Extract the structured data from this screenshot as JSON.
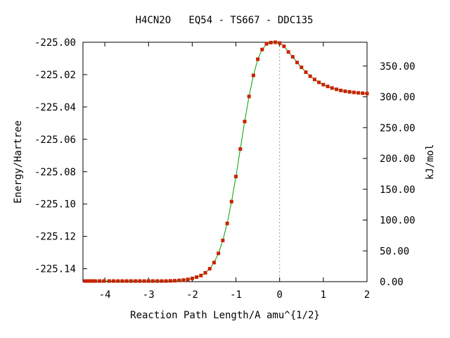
{
  "chart_data": {
    "type": "line",
    "title": "H4CN2O   EQ54 - TS667 - DDC135",
    "xlabel": "Reaction Path Length/A amu^{1/2}",
    "ylabel": "Energy/Hartree",
    "y2label": "kJ/mol",
    "xlim": [
      -4.5,
      2.0
    ],
    "ylim": [
      -225.148,
      -225.0
    ],
    "y2lim": [
      0,
      388.6
    ],
    "xticks": [
      "-4",
      "-3",
      "-2",
      "-1",
      "0",
      "1",
      "2"
    ],
    "yticks": [
      "-225.00",
      "-225.02",
      "-225.04",
      "-225.06",
      "-225.08",
      "-225.10",
      "-225.12",
      "-225.14"
    ],
    "y2ticks": [
      "0.00",
      "50.00",
      "100.00",
      "150.00",
      "200.00",
      "250.00",
      "300.00",
      "350.00"
    ],
    "grid": false,
    "reference_line_x": 0,
    "line_color": "#00a000",
    "marker_color": "#cc2200",
    "series": [
      {
        "x": [
          -4.45,
          -4.38,
          -4.3,
          -4.22,
          -4.12,
          -4.02,
          -3.9,
          -3.8,
          -3.7,
          -3.6,
          -3.5,
          -3.4,
          -3.3,
          -3.2,
          -3.1,
          -3.0,
          -2.9,
          -2.8,
          -2.7,
          -2.6,
          -2.5,
          -2.4,
          -2.3,
          -2.2,
          -2.1,
          -2.0,
          -1.9,
          -1.8,
          -1.7,
          -1.6,
          -1.5,
          -1.4,
          -1.3,
          -1.2,
          -1.1,
          -1.0,
          -0.9,
          -0.8,
          -0.7,
          -0.6,
          -0.5,
          -0.4,
          -0.3,
          -0.2,
          -0.1,
          0.0,
          0.1,
          0.2,
          0.3,
          0.4,
          0.5,
          0.6,
          0.7,
          0.8,
          0.9,
          1.0,
          1.1,
          1.2,
          1.3,
          1.4,
          1.5,
          1.6,
          1.7,
          1.8,
          1.9,
          2.0
        ],
        "y": [
          -225.1476,
          -225.1476,
          -225.1476,
          -225.1476,
          -225.1476,
          -225.1476,
          -225.1476,
          -225.1476,
          -225.1476,
          -225.1476,
          -225.1476,
          -225.1476,
          -225.1476,
          -225.1476,
          -225.1476,
          -225.1476,
          -225.1476,
          -225.1476,
          -225.1476,
          -225.1476,
          -225.1475,
          -225.1474,
          -225.1472,
          -225.147,
          -225.1466,
          -225.146,
          -225.1452,
          -225.1442,
          -225.1425,
          -225.14,
          -225.1362,
          -225.1305,
          -225.1225,
          -225.112,
          -225.0985,
          -225.083,
          -225.066,
          -225.049,
          -225.0335,
          -225.0205,
          -225.0105,
          -225.0045,
          -225.001,
          -225.0002,
          -225.0,
          -225.0005,
          -225.0025,
          -225.006,
          -225.009,
          -225.0125,
          -225.0155,
          -225.0185,
          -225.021,
          -225.023,
          -225.0248,
          -225.0262,
          -225.0273,
          -225.0283,
          -225.0291,
          -225.0298,
          -225.0303,
          -225.0307,
          -225.031,
          -225.0313,
          -225.0315,
          -225.0317
        ]
      }
    ]
  }
}
